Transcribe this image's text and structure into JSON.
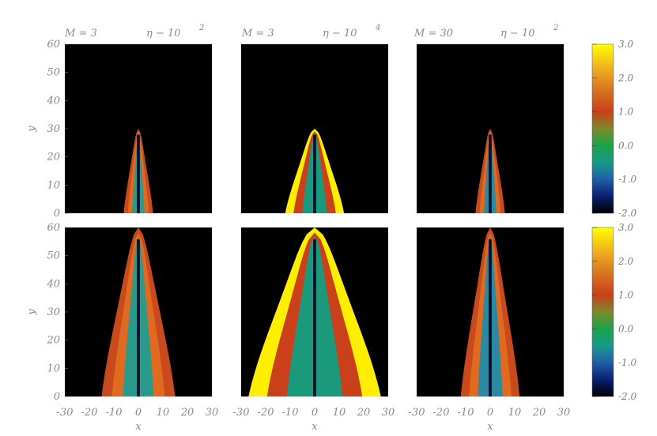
{
  "chart_data": {
    "type": "heatmap",
    "panel_titles": [
      {
        "mach": "M = 3",
        "eta": "η − 10",
        "eta_exp": "2"
      },
      {
        "mach": "M = 3",
        "eta": "η − 10",
        "eta_exp": "4"
      },
      {
        "mach": "M = 30",
        "eta": "η − 10",
        "eta_exp": "2"
      }
    ],
    "xlabel": "x",
    "ylabel": "y",
    "xlim": [
      -30,
      30
    ],
    "ylim": [
      0,
      60
    ],
    "x_ticks": [
      "-30",
      "-20",
      "-10",
      "0",
      "10",
      "20",
      "30"
    ],
    "y_ticks": [
      "0",
      "10",
      "20",
      "30",
      "40",
      "50",
      "60"
    ],
    "colorbar": {
      "range": [
        -2.0,
        3.0
      ],
      "ticks": [
        "3.0",
        "2.0",
        "1.0",
        "0.0",
        "-1.0",
        "-2.0"
      ],
      "colors": [
        "#000000",
        "#0a1f6e",
        "#1f5fa8",
        "#169a8a",
        "#1aa34a",
        "#7a8a2a",
        "#c9401a",
        "#d6701e",
        "#f0b020",
        "#ffff00"
      ]
    },
    "panels": [
      {
        "row": 1,
        "col": 1,
        "head_y": 30,
        "half_width_base": 6,
        "outer_color": "#c94a1c",
        "mid_color": "#e06a20",
        "inner_color": "#2a9a8a"
      },
      {
        "row": 1,
        "col": 2,
        "head_y": 30,
        "half_width_base": 12,
        "outer_color": "#ffee00",
        "mid_color": "#c9401a",
        "inner_color": "#1a9a7a"
      },
      {
        "row": 1,
        "col": 3,
        "head_y": 30,
        "half_width_base": 6,
        "outer_color": "#c94a1c",
        "mid_color": "#e06a20",
        "inner_color": "#2a8aa0"
      },
      {
        "row": 2,
        "col": 1,
        "head_y": 61,
        "half_width_base": 15,
        "outer_color": "#c94a1c",
        "mid_color": "#e06a20",
        "inner_color": "#2a9a8a"
      },
      {
        "row": 2,
        "col": 2,
        "head_y": 61,
        "half_width_base": 27,
        "outer_color": "#ffee00",
        "mid_color": "#c9401a",
        "inner_color": "#1a9a7a"
      },
      {
        "row": 2,
        "col": 3,
        "head_y": 61,
        "half_width_base": 12,
        "outer_color": "#c94a1c",
        "mid_color": "#e06a20",
        "inner_color": "#2a8aa0"
      }
    ]
  }
}
